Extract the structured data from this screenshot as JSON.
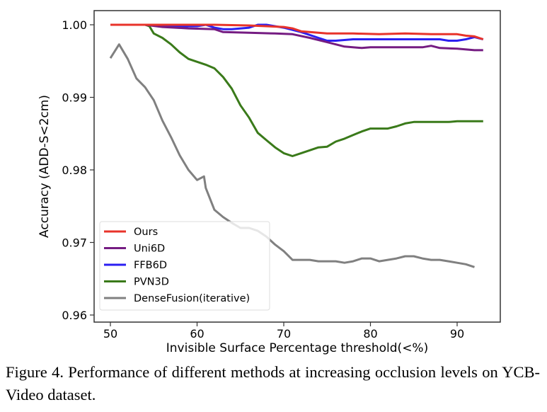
{
  "chart_data": {
    "type": "line",
    "xlabel": "Invisible Surface Percentage threshold(<%)",
    "ylabel": "Accuracy (ADD-S<2cm)",
    "xlim": [
      48,
      95
    ],
    "ylim": [
      0.96,
      1.001
    ],
    "xticks": [
      50,
      60,
      70,
      80,
      90
    ],
    "yticks": [
      0.96,
      0.97,
      0.98,
      0.99,
      1.0
    ],
    "xtick_labels": [
      "50",
      "60",
      "70",
      "80",
      "90"
    ],
    "ytick_labels": [
      "0.96",
      "0.97",
      "0.98",
      "0.99",
      "1.00"
    ],
    "grid": false,
    "legend_position": "bottom-left",
    "series": [
      {
        "name": "Ours",
        "color": "#e8332a",
        "x": [
          50,
          54,
          58,
          62,
          66,
          68,
          70,
          71,
          72,
          73,
          75,
          78,
          81,
          84,
          87,
          90,
          91,
          92,
          93
        ],
        "y": [
          1.0,
          1.0,
          1.0,
          1.0,
          0.9999,
          0.9998,
          0.9997,
          0.9995,
          0.9991,
          0.999,
          0.9988,
          0.9988,
          0.9987,
          0.9988,
          0.9987,
          0.9987,
          0.9985,
          0.9984,
          0.998
        ]
      },
      {
        "name": "Uni6D",
        "color": "#751c82",
        "x": [
          50,
          54,
          56,
          59,
          62,
          63,
          66,
          69,
          71,
          73,
          75,
          77,
          79,
          80,
          84,
          86,
          87,
          88,
          90,
          92,
          93
        ],
        "y": [
          1.0,
          1.0,
          0.9997,
          0.9995,
          0.9994,
          0.999,
          0.9989,
          0.9988,
          0.9987,
          0.9982,
          0.9976,
          0.997,
          0.9968,
          0.9969,
          0.9969,
          0.9969,
          0.9971,
          0.9968,
          0.9967,
          0.9965,
          0.9965
        ]
      },
      {
        "name": "FFB6D",
        "color": "#2b1ff2",
        "x": [
          50,
          54,
          56,
          58,
          60,
          61,
          62,
          63,
          64,
          66,
          67,
          68,
          70,
          72,
          74,
          75,
          76,
          78,
          82,
          86,
          88,
          89,
          90,
          91,
          92,
          93
        ],
        "y": [
          1.0,
          1.0,
          0.9999,
          0.9998,
          0.9998,
          1.0,
          0.9996,
          0.9994,
          0.9994,
          0.9996,
          1.0,
          1.0,
          0.9996,
          0.999,
          0.9982,
          0.9978,
          0.9978,
          0.998,
          0.998,
          0.998,
          0.998,
          0.9978,
          0.9978,
          0.998,
          0.9983,
          0.998
        ]
      },
      {
        "name": "PVN3D",
        "color": "#3a7a1a",
        "x": [
          50,
          51,
          52,
          53,
          54,
          54.5,
          55,
          56,
          57,
          58,
          59,
          60,
          61,
          62,
          63,
          64,
          65,
          66,
          67,
          68,
          69,
          70,
          71,
          72,
          73,
          74,
          75,
          76,
          77,
          78,
          79,
          80,
          81,
          82,
          83,
          84,
          85,
          86,
          87,
          88,
          89,
          90,
          91,
          92,
          93
        ],
        "y": [
          1.0,
          1.0,
          1.0,
          1.0,
          1.0,
          0.9998,
          0.9988,
          0.9982,
          0.9973,
          0.9962,
          0.9953,
          0.9949,
          0.9945,
          0.994,
          0.9928,
          0.9912,
          0.9889,
          0.9872,
          0.9851,
          0.9841,
          0.9831,
          0.9823,
          0.9819,
          0.9823,
          0.9827,
          0.9831,
          0.9832,
          0.9839,
          0.9843,
          0.9848,
          0.9853,
          0.9857,
          0.9857,
          0.9857,
          0.986,
          0.9864,
          0.9866,
          0.9866,
          0.9866,
          0.9866,
          0.9866,
          0.9867,
          0.9867,
          0.9867,
          0.9867
        ]
      },
      {
        "name": "DenseFusion(iterative)",
        "color": "#808080",
        "x": [
          50,
          51,
          52,
          53,
          54,
          55,
          56,
          57,
          58,
          59,
          60,
          60.8,
          61,
          62,
          63,
          64,
          65,
          66,
          67,
          68,
          69,
          70,
          71,
          72,
          73,
          74,
          75,
          76,
          77,
          78,
          79,
          80,
          81,
          82,
          83,
          84,
          85,
          86,
          87,
          88,
          89,
          90,
          91,
          92
        ],
        "y": [
          0.9954,
          0.9973,
          0.9953,
          0.9926,
          0.9914,
          0.9896,
          0.9868,
          0.9845,
          0.982,
          0.98,
          0.9786,
          0.9791,
          0.9775,
          0.9745,
          0.9735,
          0.9727,
          0.972,
          0.972,
          0.9716,
          0.9708,
          0.9697,
          0.9688,
          0.9676,
          0.9676,
          0.9676,
          0.9674,
          0.9674,
          0.9674,
          0.9672,
          0.9674,
          0.9678,
          0.9678,
          0.9674,
          0.9676,
          0.9678,
          0.9681,
          0.9681,
          0.9678,
          0.9676,
          0.9676,
          0.9674,
          0.9672,
          0.967,
          0.9666
        ]
      }
    ]
  },
  "caption": "Figure 4.   Performance of different methods at increasing occlusion levels on YCB-Video dataset."
}
